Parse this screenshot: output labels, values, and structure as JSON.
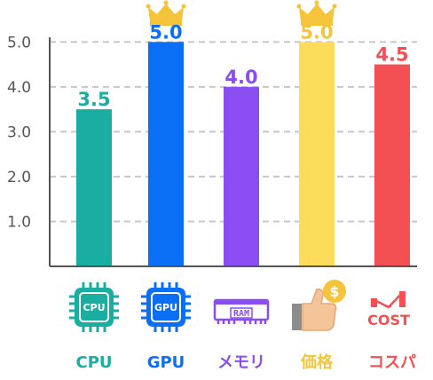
{
  "chart_data": {
    "type": "bar",
    "categories": [
      "CPU",
      "GPU",
      "メモリ",
      "価格",
      "コスパ"
    ],
    "values": [
      3.5,
      5.0,
      4.0,
      5.0,
      4.5
    ],
    "value_labels": [
      "3.5",
      "5.0",
      "4.0",
      "5.0",
      "4.5"
    ],
    "colors": [
      "#1aaea3",
      "#0b6ff5",
      "#8a4df1",
      "#fddc5c",
      "#f25053"
    ],
    "label_colors": [
      "#1aaea3",
      "#0b6ff5",
      "#8a4df1",
      "#f2c63b",
      "#f25053"
    ],
    "yticks": [
      1.0,
      2.0,
      3.0,
      4.0,
      5.0
    ],
    "ytick_labels": [
      "1.0",
      "2.0",
      "3.0",
      "4.0",
      "5.0"
    ],
    "ylim": [
      0,
      5.5
    ],
    "grid": true,
    "crowned_categories": [
      "GPU",
      "価格"
    ],
    "crown_color": "#f6c43a",
    "icons": [
      "cpu-chip-icon",
      "gpu-chip-icon",
      "ram-module-icon",
      "thumbs-up-coin-icon",
      "cost-bars-icon"
    ],
    "icon_texts": {
      "cpu": "CPU",
      "gpu": "GPU",
      "ram": "RAM",
      "coin": "$",
      "cost": "COST"
    }
  }
}
